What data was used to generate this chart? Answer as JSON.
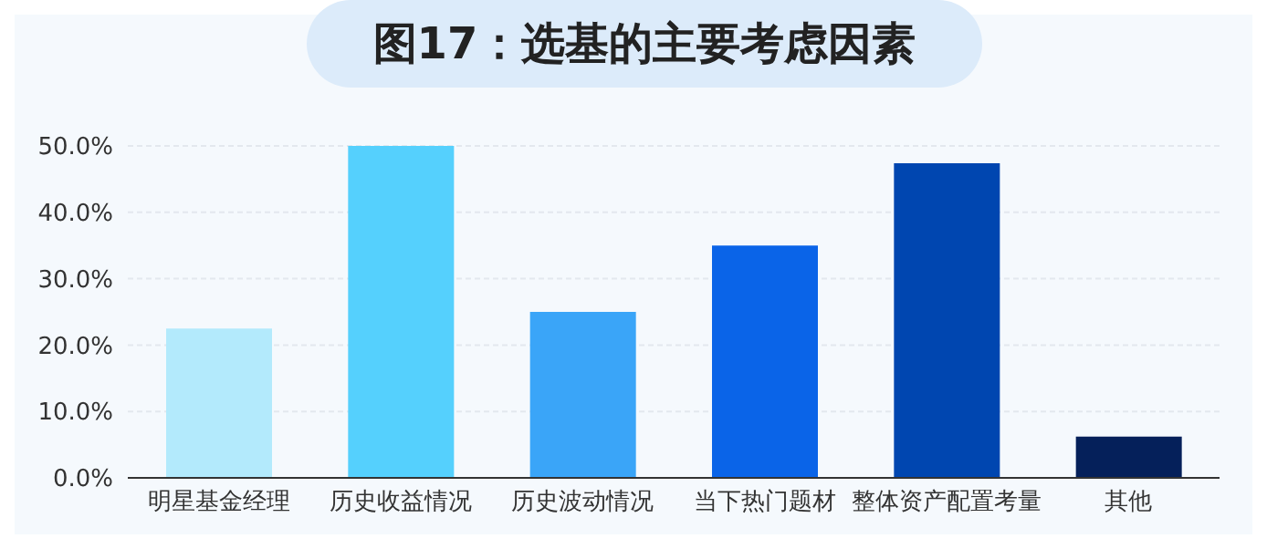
{
  "chart_data": {
    "type": "bar",
    "title": "图17：选基的主要考虑因素",
    "categories": [
      "明星基金经理",
      "历史收益情况",
      "历史波动情况",
      "当下热门题材",
      "整体资产配置考量",
      "其他"
    ],
    "values": [
      22.5,
      50,
      25,
      35,
      47.4,
      6.2
    ],
    "colors": [
      "#b3eafc",
      "#55d0fd",
      "#3aa5f8",
      "#0a64e8",
      "#0046b0",
      "#05205a"
    ],
    "ylim": [
      0,
      50
    ],
    "yticks": [
      {
        "value": 0,
        "label": "0.0%"
      },
      {
        "value": 10,
        "label": "10.0%"
      },
      {
        "value": 20,
        "label": "20.0%"
      },
      {
        "value": 30,
        "label": "30.0%"
      },
      {
        "value": 40,
        "label": "40.0%"
      },
      {
        "value": 50,
        "label": "50.0%"
      }
    ],
    "grid": "y",
    "legend": false
  }
}
